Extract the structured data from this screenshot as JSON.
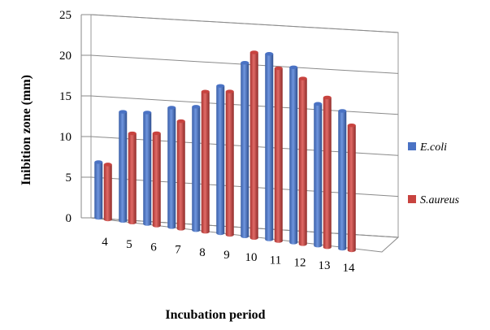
{
  "chart_data": {
    "type": "bar",
    "style": "3d-clustered-column",
    "categories": [
      "4",
      "5",
      "6",
      "7",
      "8",
      "9",
      "10",
      "11",
      "12",
      "13",
      "14"
    ],
    "series": [
      {
        "name": "E.coli",
        "color": "#4a72c4",
        "values": [
          7.0,
          13.7,
          14.0,
          15.0,
          15.5,
          18.5,
          21.8,
          23.3,
          22.0,
          17.8,
          17.3
        ]
      },
      {
        "name": "S.aureus",
        "color": "#c8433f",
        "values": [
          6.9,
          11.2,
          11.6,
          13.5,
          17.6,
          18.0,
          23.3,
          21.7,
          20.8,
          18.8,
          15.7
        ]
      }
    ],
    "xlabel": "Incubation period",
    "ylabel": "Inibition zone (mm)",
    "yticks": [
      "0",
      "5",
      "10",
      "15",
      "20",
      "25"
    ],
    "ylim": [
      0,
      25
    ],
    "grid": true,
    "legend_position": "right"
  }
}
